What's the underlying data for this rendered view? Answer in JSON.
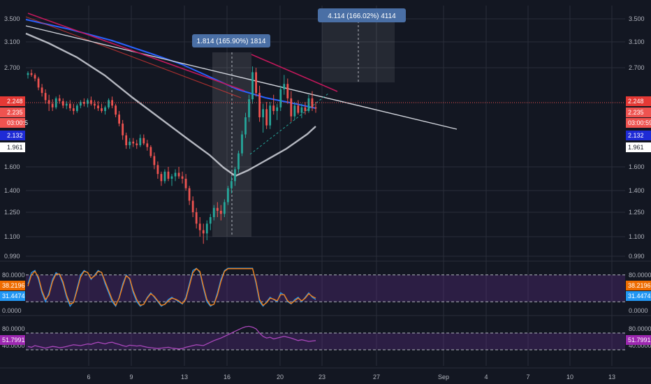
{
  "chart_data": [
    {
      "type": "candlestick",
      "price_ticks": [
        "3.500",
        "3.100",
        "2.700",
        "2.248",
        "2.235",
        "2.132",
        "1.961",
        "1.600",
        "1.400",
        "1.250",
        "1.100",
        "0.990"
      ],
      "price_badges": [
        {
          "label": "2.248",
          "bg": "#e53935",
          "fg": "#ffffff"
        },
        {
          "label": "2.235",
          "bg": "#ef5350",
          "fg": "#ffffff"
        },
        {
          "label": "03:00:59",
          "bg": "#ef5350",
          "fg": "#ffffff"
        },
        {
          "label": "2.132",
          "bg": "#1e2bd6",
          "fg": "#ffffff"
        },
        {
          "label": "1.961",
          "bg": "#ffffff",
          "fg": "#131722"
        }
      ],
      "left_countdown_label": "03:00:5",
      "x_ticks": [
        "6",
        "9",
        "13",
        "16",
        "20",
        "23",
        "27",
        "Sep",
        "4",
        "7",
        "10",
        "13"
      ],
      "candles": [
        [
          2.62,
          2.66,
          2.58,
          2.64
        ],
        [
          2.64,
          2.68,
          2.6,
          2.62
        ],
        [
          2.62,
          2.64,
          2.55,
          2.58
        ],
        [
          2.58,
          2.6,
          2.45,
          2.48
        ],
        [
          2.48,
          2.52,
          2.38,
          2.42
        ],
        [
          2.42,
          2.46,
          2.3,
          2.34
        ],
        [
          2.34,
          2.4,
          2.22,
          2.3
        ],
        [
          2.3,
          2.35,
          2.22,
          2.26
        ],
        [
          2.26,
          2.38,
          2.24,
          2.36
        ],
        [
          2.36,
          2.4,
          2.3,
          2.33
        ],
        [
          2.33,
          2.36,
          2.25,
          2.28
        ],
        [
          2.28,
          2.33,
          2.24,
          2.3
        ],
        [
          2.3,
          2.34,
          2.22,
          2.25
        ],
        [
          2.25,
          2.3,
          2.18,
          2.22
        ],
        [
          2.22,
          2.3,
          2.2,
          2.28
        ],
        [
          2.28,
          2.34,
          2.25,
          2.32
        ],
        [
          2.32,
          2.36,
          2.27,
          2.3
        ],
        [
          2.3,
          2.36,
          2.26,
          2.34
        ],
        [
          2.34,
          2.38,
          2.28,
          2.3
        ],
        [
          2.3,
          2.34,
          2.24,
          2.28
        ],
        [
          2.28,
          2.33,
          2.22,
          2.25
        ],
        [
          2.25,
          2.3,
          2.2,
          2.22
        ],
        [
          2.22,
          2.28,
          2.18,
          2.26
        ],
        [
          2.26,
          2.36,
          2.24,
          2.34
        ],
        [
          2.34,
          2.38,
          2.25,
          2.28
        ],
        [
          2.28,
          2.3,
          2.15,
          2.18
        ],
        [
          2.18,
          2.22,
          2.05,
          2.08
        ],
        [
          2.08,
          2.12,
          1.9,
          1.95
        ],
        [
          1.95,
          1.98,
          1.8,
          1.84
        ],
        [
          1.84,
          1.92,
          1.8,
          1.88
        ],
        [
          1.88,
          1.92,
          1.82,
          1.86
        ],
        [
          1.86,
          1.9,
          1.8,
          1.84
        ],
        [
          1.84,
          1.96,
          1.82,
          1.92
        ],
        [
          1.92,
          1.96,
          1.84,
          1.86
        ],
        [
          1.86,
          1.9,
          1.78,
          1.82
        ],
        [
          1.82,
          1.84,
          1.7,
          1.72
        ],
        [
          1.72,
          1.76,
          1.58,
          1.62
        ],
        [
          1.62,
          1.66,
          1.5,
          1.54
        ],
        [
          1.54,
          1.56,
          1.44,
          1.48
        ],
        [
          1.48,
          1.58,
          1.46,
          1.56
        ],
        [
          1.56,
          1.6,
          1.48,
          1.5
        ],
        [
          1.5,
          1.54,
          1.44,
          1.52
        ],
        [
          1.52,
          1.58,
          1.48,
          1.55
        ],
        [
          1.55,
          1.6,
          1.5,
          1.52
        ],
        [
          1.52,
          1.56,
          1.46,
          1.5
        ],
        [
          1.5,
          1.54,
          1.4,
          1.42
        ],
        [
          1.42,
          1.44,
          1.3,
          1.33
        ],
        [
          1.33,
          1.36,
          1.22,
          1.25
        ],
        [
          1.25,
          1.28,
          1.15,
          1.18
        ],
        [
          1.18,
          1.22,
          1.1,
          1.14
        ],
        [
          1.14,
          1.18,
          1.06,
          1.12
        ],
        [
          1.12,
          1.2,
          1.08,
          1.18
        ],
        [
          1.18,
          1.24,
          1.14,
          1.22
        ],
        [
          1.22,
          1.3,
          1.2,
          1.28
        ],
        [
          1.28,
          1.32,
          1.22,
          1.26
        ],
        [
          1.26,
          1.3,
          1.2,
          1.24
        ],
        [
          1.24,
          1.34,
          1.22,
          1.32
        ],
        [
          1.32,
          1.44,
          1.3,
          1.42
        ],
        [
          1.42,
          1.52,
          1.38,
          1.48
        ],
        [
          1.48,
          1.6,
          1.44,
          1.58
        ],
        [
          1.58,
          1.78,
          1.55,
          1.75
        ],
        [
          1.75,
          2.0,
          1.72,
          1.96
        ],
        [
          1.96,
          2.2,
          1.92,
          2.15
        ],
        [
          2.15,
          2.4,
          2.1,
          2.35
        ],
        [
          2.35,
          2.72,
          2.3,
          2.65
        ],
        [
          2.65,
          2.7,
          2.38,
          2.42
        ],
        [
          2.42,
          2.5,
          2.1,
          2.15
        ],
        [
          2.15,
          2.3,
          1.98,
          2.24
        ],
        [
          2.24,
          2.32,
          2.02,
          2.06
        ],
        [
          2.06,
          2.32,
          2.02,
          2.28
        ],
        [
          2.28,
          2.4,
          2.18,
          2.22
        ],
        [
          2.22,
          2.3,
          2.12,
          2.26
        ],
        [
          2.26,
          2.5,
          2.22,
          2.46
        ],
        [
          2.46,
          2.62,
          2.4,
          2.52
        ],
        [
          2.52,
          2.58,
          2.3,
          2.36
        ],
        [
          2.36,
          2.44,
          2.1,
          2.16
        ],
        [
          2.16,
          2.32,
          2.12,
          2.28
        ],
        [
          2.28,
          2.34,
          2.18,
          2.2
        ],
        [
          2.2,
          2.3,
          2.14,
          2.26
        ],
        [
          2.26,
          2.32,
          2.18,
          2.22
        ],
        [
          2.22,
          2.4,
          2.2,
          2.36
        ],
        [
          2.36,
          2.44,
          2.22,
          2.26
        ],
        [
          2.26,
          2.32,
          2.2,
          2.248
        ]
      ],
      "annotations": [
        {
          "label": "1.814 (165.90%) 1814"
        },
        {
          "label": "4.114 (166.02%) 4114"
        }
      ],
      "colors": {
        "up": "#26a69a",
        "down": "#ef5350",
        "ma_white": "#d1d4dc",
        "ma_blue": "#2962ff",
        "trend_red": "#c2185b",
        "grid": "#2a2e39"
      }
    },
    {
      "type": "line",
      "name": "stoch_rsi",
      "ticks": [
        "80.0000",
        "0.0000"
      ],
      "badges": [
        {
          "label": "38.2196",
          "bg": "#ef6c00",
          "fg": "#ffffff"
        },
        {
          "label": "31.4474",
          "bg": "#2196f3",
          "fg": "#ffffff"
        }
      ],
      "band": [
        20,
        80
      ],
      "series": [
        {
          "color": "#2196f3",
          "values": [
            60,
            85,
            90,
            70,
            40,
            20,
            40,
            70,
            85,
            80,
            60,
            30,
            10,
            20,
            50,
            80,
            90,
            85,
            70,
            80,
            90,
            85,
            60,
            40,
            20,
            10,
            30,
            60,
            80,
            70,
            40,
            20,
            10,
            15,
            30,
            40,
            30,
            20,
            10,
            15,
            25,
            30,
            25,
            20,
            15,
            30,
            60,
            90,
            95,
            85,
            50,
            20,
            10,
            15,
            40,
            70,
            90,
            95,
            95,
            95,
            95,
            95,
            95,
            95,
            95,
            60,
            20,
            10,
            20,
            30,
            25,
            20,
            40,
            35,
            20,
            15,
            25,
            30,
            20,
            30,
            40,
            30,
            25
          ]
        },
        {
          "color": "#ff7f0e",
          "values": [
            55,
            80,
            88,
            75,
            45,
            25,
            35,
            65,
            82,
            82,
            65,
            35,
            15,
            18,
            45,
            75,
            88,
            86,
            72,
            78,
            88,
            86,
            65,
            45,
            25,
            12,
            28,
            55,
            78,
            72,
            45,
            25,
            12,
            14,
            28,
            38,
            32,
            22,
            12,
            14,
            22,
            28,
            26,
            22,
            16,
            26,
            55,
            85,
            94,
            88,
            55,
            25,
            12,
            14,
            35,
            65,
            88,
            94,
            94,
            94,
            94,
            94,
            94,
            94,
            94,
            65,
            25,
            12,
            18,
            28,
            26,
            22,
            36,
            36,
            22,
            16,
            22,
            28,
            22,
            28,
            38,
            32,
            28
          ]
        }
      ]
    },
    {
      "type": "line",
      "name": "rsi",
      "ticks": [
        "80.0000",
        "40.0000"
      ],
      "badges": [
        {
          "label": "51.7991",
          "bg": "#9c27b0",
          "fg": "#ffffff"
        }
      ],
      "band": [
        30,
        70
      ],
      "series": [
        {
          "color": "#ab47bc",
          "values": [
            38,
            36,
            40,
            38,
            36,
            34,
            36,
            38,
            37,
            35,
            36,
            38,
            40,
            42,
            41,
            40,
            42,
            44,
            43,
            46,
            48,
            46,
            44,
            47,
            48,
            45,
            43,
            40,
            38,
            41,
            40,
            39,
            40,
            38,
            36,
            35,
            34,
            33,
            34,
            35,
            36,
            34,
            33,
            32,
            33,
            36,
            38,
            40,
            42,
            41,
            40,
            44,
            48,
            52,
            55,
            58,
            62,
            66,
            70,
            74,
            78,
            82,
            85,
            86,
            84,
            80,
            70,
            62,
            58,
            60,
            56,
            58,
            60,
            62,
            60,
            58,
            55,
            52,
            54,
            52,
            50,
            51,
            52
          ]
        }
      ]
    }
  ]
}
